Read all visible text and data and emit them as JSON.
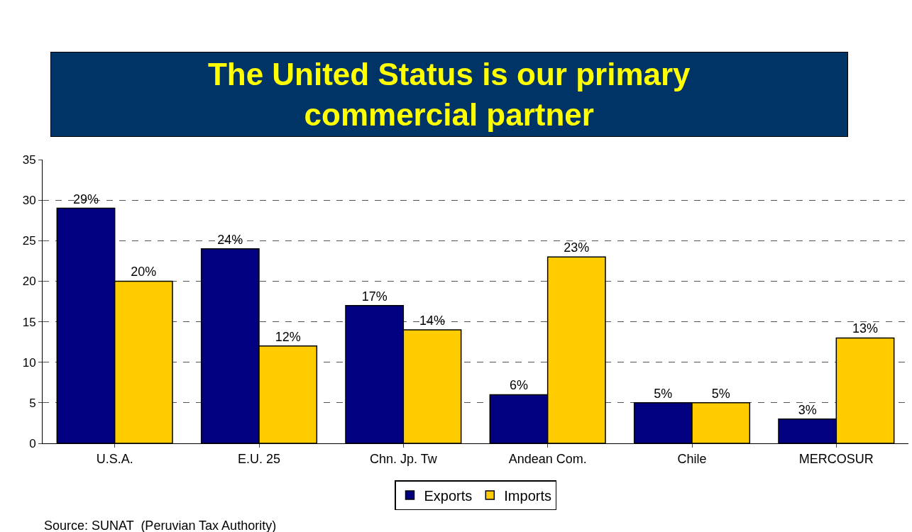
{
  "chart_data": {
    "type": "bar",
    "title": "The United Status is our primary commercial partner",
    "categories": [
      "U.S.A.",
      "E.U. 25",
      "Chn. Jp. Tw",
      "Andean Com.",
      "Chile",
      "MERCOSUR"
    ],
    "series": [
      {
        "name": "Exports",
        "color": "#000080",
        "values": [
          29,
          24,
          17,
          6,
          5,
          3
        ],
        "value_labels": [
          "29%",
          "24%",
          "17%",
          "6%",
          "5%",
          "3%"
        ]
      },
      {
        "name": "Imports",
        "color": "#ffcc00",
        "values": [
          20,
          12,
          14,
          23,
          5,
          13
        ],
        "value_labels": [
          "20%",
          "12%",
          "14%",
          "23%",
          "5%",
          "13%"
        ]
      }
    ],
    "ylim": [
      0,
      35
    ],
    "yticks": [
      0,
      5,
      10,
      15,
      20,
      25,
      30,
      35
    ],
    "grid": "y",
    "legend": "bottom",
    "annotations": [
      "Source: SUNAT  (Peruvian Tax Authority)"
    ]
  }
}
